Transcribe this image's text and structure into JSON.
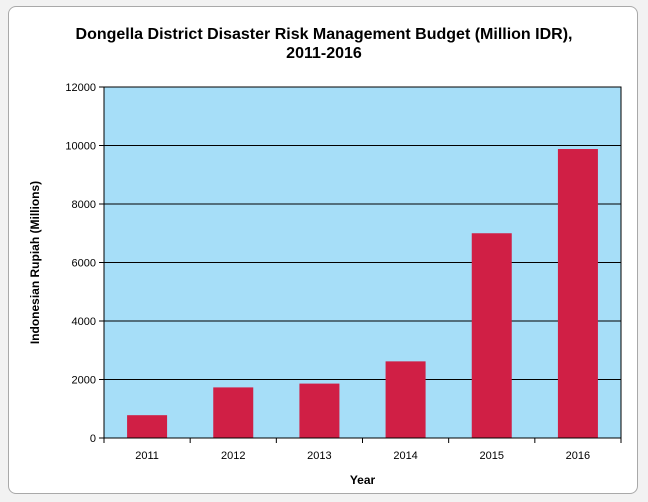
{
  "chart_data": {
    "type": "bar",
    "title_line1": "Dongella District Disaster Risk Management Budget (Million IDR),",
    "title_line2": "2011-2016",
    "xlabel": "Year",
    "ylabel": "Indonesian Rupiah (Millions)",
    "categories": [
      "2011",
      "2012",
      "2013",
      "2014",
      "2015",
      "2016"
    ],
    "values": [
      780,
      1730,
      1860,
      2620,
      7000,
      9880
    ],
    "ylim": [
      0,
      12000
    ],
    "yticks": [
      "0",
      "2000",
      "4000",
      "6000",
      "8000",
      "10000",
      "12000"
    ],
    "grid": true,
    "legend": "none",
    "colors": {
      "bar": "#d01f45",
      "plot_bg": "#a6def8",
      "gridline": "#000000"
    }
  }
}
